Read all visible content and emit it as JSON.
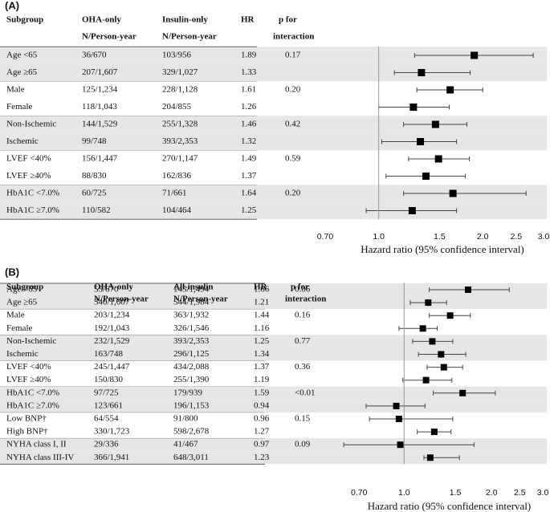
{
  "chart_data": [
    {
      "type": "forest",
      "panel": "(A)",
      "columns": [
        [
          "Subgroup"
        ],
        [
          "OHA-only",
          "N/Person-year"
        ],
        [
          "Insulin-only",
          "N/Person-year"
        ],
        [
          "HR"
        ],
        [
          "p for",
          "interaction"
        ]
      ],
      "rows": [
        {
          "label": "Age <65",
          "group1": "36/670",
          "group2": "103/956",
          "hr": 1.89,
          "p": "0.17",
          "ci": [
            1.27,
            2.8
          ]
        },
        {
          "label": "Age ≥65",
          "group1": "207/1,607",
          "group2": "329/1,027",
          "hr": 1.33,
          "p": null,
          "ci": [
            1.11,
            1.84
          ]
        },
        {
          "label": "Male",
          "group1": "125/1,234",
          "group2": "228/1,128",
          "hr": 1.61,
          "p": "0.20",
          "ci": [
            1.29,
            2.0
          ]
        },
        {
          "label": "Female",
          "group1": "118/1,043",
          "group2": "204/855",
          "hr": 1.26,
          "p": null,
          "ci": [
            1.0,
            1.6
          ]
        },
        {
          "label": "Non-Ischemic",
          "group1": "144/1,529",
          "group2": "255/1,328",
          "hr": 1.46,
          "p": "0.42",
          "ci": [
            1.18,
            1.8
          ]
        },
        {
          "label": "Ischemic",
          "group1": "99/748",
          "group2": "393/2,353",
          "hr": 1.32,
          "p": null,
          "ci": [
            1.02,
            1.68
          ]
        },
        {
          "label": "LVEF <40%",
          "group1": "156/1,447",
          "group2": "270/1,147",
          "hr": 1.49,
          "p": "0.59",
          "ci": [
            1.22,
            1.83
          ]
        },
        {
          "label": "LVEF ≥40%",
          "group1": "88/830",
          "group2": "162/836",
          "hr": 1.37,
          "p": null,
          "ci": [
            1.05,
            1.78
          ]
        },
        {
          "label": "HbA1C <7.0%",
          "group1": "60/725",
          "group2": "71/661",
          "hr": 1.64,
          "p": "0.20",
          "ci": [
            1.18,
            2.67
          ]
        },
        {
          "label": "HbA1C ≥7.0%",
          "group1": "110/582",
          "group2": "104/464",
          "hr": 1.25,
          "p": null,
          "ci": [
            0.92,
            1.68
          ]
        }
      ],
      "xlim": [
        0.7,
        3.0
      ],
      "log_x": true,
      "xticks": [
        {
          "value": 0.7,
          "label": "0.70"
        },
        {
          "value": 1,
          "label": "1.0"
        },
        1.5,
        {
          "value": 2,
          "label": "2.0"
        },
        2.5,
        {
          "value": 3,
          "label": "3.0"
        }
      ],
      "reference": 1,
      "xlabel": "Hazard ratio (95% confidence interval)"
    },
    {
      "type": "forest",
      "panel": "(B)",
      "columns": [
        [
          "Subgroup"
        ],
        [
          "OHA-only",
          "N/Person-year"
        ],
        [
          "All-insulin",
          "N/Person-year"
        ],
        [
          "HR"
        ],
        [
          "p for",
          "interaction"
        ]
      ],
      "rows": [
        {
          "label": "Age <65",
          "group1": "55/670",
          "group2": "145/1,494",
          "hr": 1.66,
          "p": "0.06",
          "ci": [
            1.22,
            2.3
          ]
        },
        {
          "label": "Age ≥65",
          "group1": "340/1,607",
          "group2": "544/1,984",
          "hr": 1.21,
          "p": null,
          "ci": [
            1.05,
            1.4
          ]
        },
        {
          "label": "Male",
          "group1": "203/1,234",
          "group2": "363/1,932",
          "hr": 1.44,
          "p": "0.16",
          "ci": [
            1.22,
            1.69
          ]
        },
        {
          "label": "Female",
          "group1": "192/1,043",
          "group2": "326/1,546",
          "hr": 1.16,
          "p": null,
          "ci": [
            0.96,
            1.3
          ]
        },
        {
          "label": "Non-Ischemic",
          "group1": "232/1,529",
          "group2": "393/2,353",
          "hr": 1.25,
          "p": "0.77",
          "ci": [
            1.07,
            1.47
          ]
        },
        {
          "label": "Ischemic",
          "group1": "163/748",
          "group2": "296/1,125",
          "hr": 1.34,
          "p": null,
          "ci": [
            1.12,
            1.63
          ]
        },
        {
          "label": "LVEF <40%",
          "group1": "245/1,447",
          "group2": "434/2,088",
          "hr": 1.37,
          "p": "0.36",
          "ci": [
            1.2,
            1.59
          ]
        },
        {
          "label": "LVEF ≥40%",
          "group1": "150/830",
          "group2": "255/1,390",
          "hr": 1.19,
          "p": null,
          "ci": [
            0.99,
            1.46
          ]
        },
        {
          "label": "HbA1C <7.0%",
          "group1": "97/725",
          "group2": "179/939",
          "hr": 1.59,
          "p": "<0.01",
          "ci": [
            1.26,
            2.06
          ]
        },
        {
          "label": "HbA1C ≥7.0%",
          "group1": "123/661",
          "group2": "196/1,153",
          "hr": 0.94,
          "p": null,
          "ci": [
            0.74,
            1.18
          ]
        },
        {
          "label": "Low BNP†",
          "group1": "64/554",
          "group2": "91/800",
          "hr": 0.96,
          "p": "0.15",
          "ci": [
            0.76,
            1.47
          ]
        },
        {
          "label": "High BNP†",
          "group1": "330/1,723",
          "group2": "598/2,678",
          "hr": 1.27,
          "p": null,
          "ci": [
            1.11,
            1.45
          ]
        },
        {
          "label": "NYHA class I, II",
          "group1": "29/336",
          "group2": "41/467",
          "hr": 0.97,
          "p": "0.09",
          "ci": [
            0.62,
            1.74
          ]
        },
        {
          "label": "NYHA class III-IV",
          "group1": "366/1,941",
          "group2": "648/3,011",
          "hr": 1.23,
          "p": null,
          "ci": [
            1.17,
            1.55
          ]
        }
      ],
      "xlim": [
        0.6,
        3.0
      ],
      "log_x": true,
      "xticks": [
        {
          "value": 0.7,
          "label": "0.70"
        },
        {
          "value": 1,
          "label": "1.0"
        },
        1.5,
        {
          "value": 2,
          "label": "2.0"
        },
        2.5,
        {
          "value": 3,
          "label": "3.0"
        }
      ],
      "reference": 1,
      "xlabel": "Hazard ratio (95% confidence interval)"
    }
  ]
}
